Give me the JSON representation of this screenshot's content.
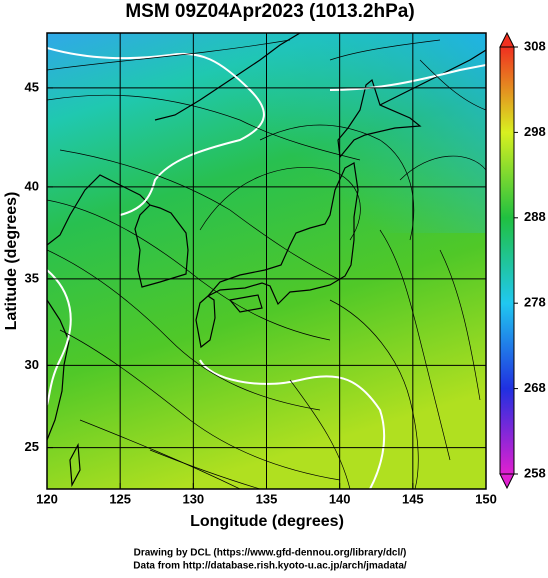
{
  "chart_data": {
    "type": "map",
    "title": "MSM 09Z04Apr2023 (1013.2hPa)",
    "x_label": "Longitude (degrees)",
    "y_label": "Latitude  (degrees)",
    "xlim": [
      120,
      150
    ],
    "xticks": [
      120,
      125,
      130,
      135,
      140,
      145,
      150
    ],
    "ylim": [
      22.4,
      47.6
    ],
    "yticks": [
      25,
      30,
      35,
      40,
      45
    ],
    "projection": "mercator",
    "grid": true,
    "colorbar": {
      "lim": [
        258,
        308
      ],
      "ticks": [
        258,
        268,
        278,
        288,
        298,
        308
      ],
      "colors": [
        "#e020d0",
        "#2030e0",
        "#20c8f0",
        "#20c040",
        "#d8f020",
        "#f03020"
      ]
    },
    "credits": [
      "Drawing by DCL (https://www.gfd-dennou.org/library/dcl/)",
      "Data from http://database.rish.kyoto-u.ac.jp/arch/jmadata/"
    ]
  }
}
